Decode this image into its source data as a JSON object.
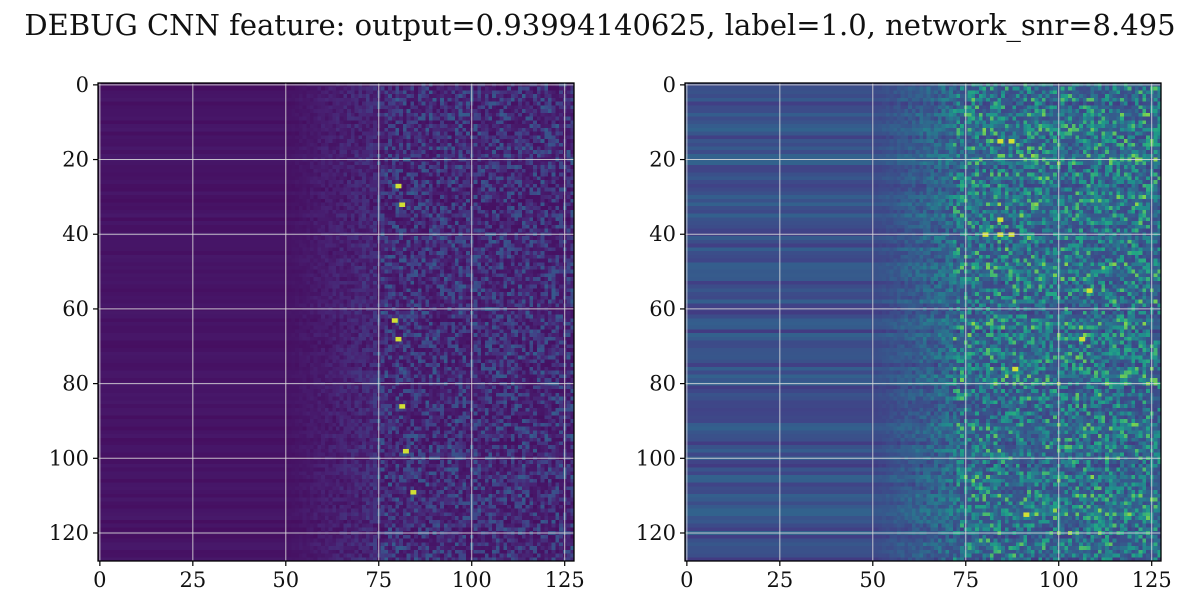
{
  "title": "DEBUG CNN feature: output=0.93994140625, label=1.0, network_snr=8.495",
  "chart_data": [
    {
      "type": "heatmap",
      "name": "left-feature-map",
      "rows": 128,
      "cols": 128,
      "xlim": [
        0,
        127
      ],
      "ylim": [
        127,
        0
      ],
      "x_ticks": [
        0,
        25,
        50,
        75,
        100,
        125
      ],
      "y_ticks": [
        0,
        20,
        40,
        60,
        80,
        100,
        120
      ],
      "grid": true,
      "colormap": "viridis",
      "value_range": [
        0,
        1
      ],
      "bright_spots": [
        [
          80,
          27
        ],
        [
          81,
          32
        ],
        [
          79,
          63
        ],
        [
          80,
          68
        ],
        [
          81,
          86
        ],
        [
          82,
          98
        ],
        [
          84,
          109
        ]
      ],
      "pattern": {
        "dark_until": 50,
        "noise_from": 75,
        "base_level": 0.05,
        "noise_level": 0.22,
        "row_band_level": 0.04
      }
    },
    {
      "type": "heatmap",
      "name": "right-feature-map",
      "rows": 128,
      "cols": 128,
      "xlim": [
        0,
        127
      ],
      "ylim": [
        127,
        0
      ],
      "x_ticks": [
        0,
        25,
        50,
        75,
        100,
        125
      ],
      "y_ticks": [
        0,
        20,
        40,
        60,
        80,
        100,
        120
      ],
      "grid": true,
      "colormap": "viridis",
      "value_range": [
        0,
        1
      ],
      "bright_spots": [
        [
          84,
          15
        ],
        [
          87,
          15
        ],
        [
          84,
          36
        ],
        [
          80,
          40
        ],
        [
          84,
          40
        ],
        [
          87,
          40
        ],
        [
          88,
          76
        ],
        [
          91,
          115
        ],
        [
          106,
          68
        ],
        [
          108,
          55
        ]
      ],
      "pattern": {
        "dark_until": 50,
        "noise_from": 72,
        "base_level": 0.22,
        "noise_level": 0.4,
        "row_band_level": 0.18
      }
    }
  ]
}
